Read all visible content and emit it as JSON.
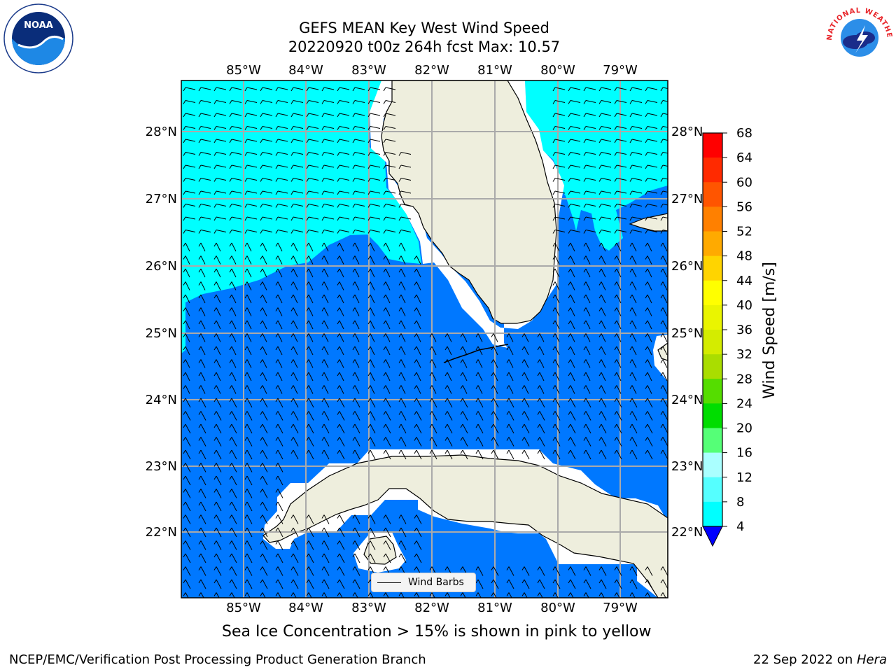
{
  "header": {
    "title_line1": "GEFS MEAN Key West Wind Speed",
    "title_line2": "20220920 t00z 264h fcst   Max: 10.57"
  },
  "logos": {
    "noaa_text": "NOAA",
    "noaa_ring": "NATIONAL OCEANIC AND ATMOSPHERIC ADMINISTRATION · U.S. DEPARTMENT OF COMMERCE",
    "nws_ring": "NATIONAL WEATHER SERVICE"
  },
  "map": {
    "longitude_labels": [
      "85°W",
      "84°W",
      "83°W",
      "82°W",
      "81°W",
      "80°W",
      "79°W"
    ],
    "latitude_labels": [
      "28°N",
      "27°N",
      "26°N",
      "25°N",
      "24°N",
      "23°N",
      "22°N"
    ],
    "legend_label": "Wind Barbs",
    "colors": {
      "ocean_low": "#00ffff",
      "ocean_high": "#0078ff",
      "land": "#eeeedd",
      "gridline": "#aaaaaa"
    }
  },
  "colorbar": {
    "label": "Wind Speed [m/s]",
    "ticks": [
      "68",
      "64",
      "60",
      "56",
      "52",
      "48",
      "44",
      "40",
      "36",
      "32",
      "28",
      "24",
      "20",
      "16",
      "12",
      "8",
      "4"
    ],
    "colors": [
      "#ff0000",
      "#ff2a00",
      "#ff5500",
      "#ff8000",
      "#ffaa00",
      "#ffd400",
      "#ffff00",
      "#eaf500",
      "#d4ec00",
      "#aadd00",
      "#55dd00",
      "#00dd00",
      "#55ff77",
      "#aaffff",
      "#55ffff",
      "#00ffff",
      "#0078ff"
    ],
    "extend_color": "#0000ff"
  },
  "caption": "Sea Ice Concentration > 15% is shown in pink to yellow",
  "footer": {
    "left": "NCEP/EMC/Verification Post Processing Product Generation Branch",
    "right_date": "22 Sep 2022 on ",
    "right_host": "Hera"
  }
}
